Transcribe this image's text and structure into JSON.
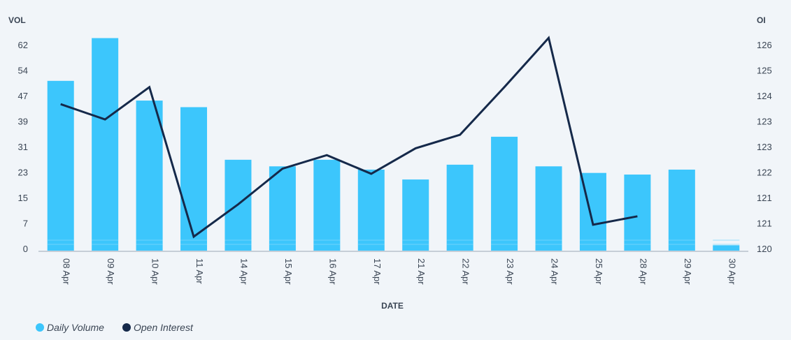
{
  "chart_data": {
    "type": "bar",
    "categories": [
      "08 Apr",
      "09 Apr",
      "10 Apr",
      "11 Apr",
      "14 Apr",
      "15 Apr",
      "16 Apr",
      "17 Apr",
      "21 Apr",
      "22 Apr",
      "23 Apr",
      "24 Apr",
      "25 Apr",
      "28 Apr",
      "29 Apr",
      "30 Apr"
    ],
    "series": [
      {
        "name": "Daily Volume",
        "type": "bar",
        "axis": "left",
        "color": "#3cc6fc",
        "values": [
          51,
          64,
          45,
          43,
          27,
          25,
          27,
          24,
          21,
          25.5,
          34,
          25,
          23,
          22.5,
          24,
          1
        ]
      },
      {
        "name": "Open Interest",
        "type": "line",
        "axis": "right",
        "color": "#15294a",
        "values": [
          124.25,
          123.8,
          124.75,
          120.35,
          121.3,
          122.35,
          122.75,
          122.2,
          122.95,
          123.35,
          124.75,
          126.2,
          120.7,
          120.95,
          null,
          null
        ]
      }
    ],
    "xlabel": "DATE",
    "ylabel_left": "VOL",
    "ylabel_right": "OI",
    "left_ticks": [
      "0",
      "7",
      "15",
      "23",
      "31",
      "39",
      "47",
      "54",
      "62"
    ],
    "right_ticks": [
      "120",
      "121",
      "121",
      "122",
      "123",
      "123",
      "124",
      "125",
      "126"
    ],
    "ylim_left": [
      0,
      62
    ],
    "ylim_right": [
      120,
      126
    ],
    "legend": [
      {
        "label": "Daily Volume",
        "color": "#3cc6fc"
      },
      {
        "label": "Open Interest",
        "color": "#15294a"
      }
    ]
  }
}
